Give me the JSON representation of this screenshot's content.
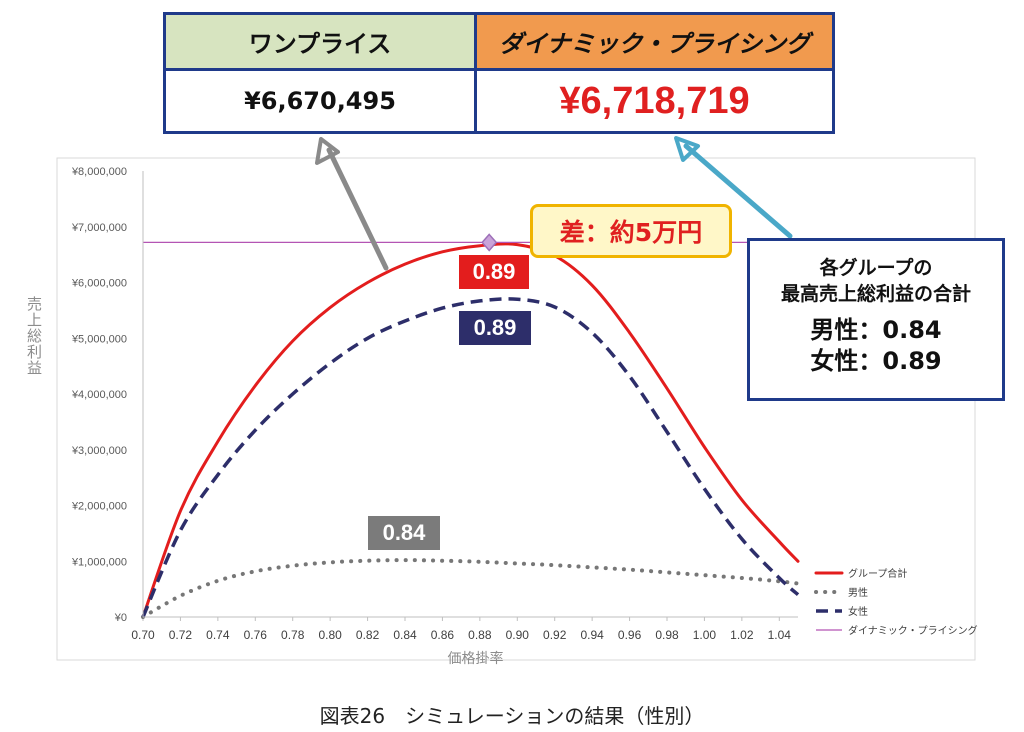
{
  "comparison": {
    "one_price_label": "ワンプライス",
    "dynamic_label": "ダイナミック・プライシング",
    "one_price_value": "¥6,670,495",
    "dynamic_value": "¥6,718,719"
  },
  "callouts": {
    "difference": "差：約5万円",
    "info_title_1": "各グループの",
    "info_title_2": "最高売上総利益の合計",
    "info_male": "男性：0.84",
    "info_female": "女性：0.89",
    "tag_total": "0.89",
    "tag_female": "0.89",
    "tag_male": "0.84"
  },
  "caption": "図表26　シミュレーションの結果（性別）",
  "colors": {
    "total": "#e31d1d",
    "male": "#777777",
    "female": "#2d2e6a",
    "dynamic": "#b455b4",
    "arrow_gray": "#8a8a8a",
    "arrow_blue": "#4aa8c8"
  },
  "chart_data": {
    "type": "line",
    "xlabel": "価格掛率",
    "ylabel": "売上総利益",
    "xlim": [
      0.7,
      1.05
    ],
    "ylim": [
      0,
      8000000
    ],
    "x_ticks": [
      "0.70",
      "0.72",
      "0.74",
      "0.76",
      "0.78",
      "0.80",
      "0.82",
      "0.84",
      "0.86",
      "0.88",
      "0.90",
      "0.92",
      "0.94",
      "0.96",
      "0.98",
      "1.00",
      "1.02",
      "1.04"
    ],
    "y_ticks": [
      "¥0",
      "¥1,000,000",
      "¥2,000,000",
      "¥3,000,000",
      "¥4,000,000",
      "¥5,000,000",
      "¥6,000,000",
      "¥7,000,000",
      "¥8,000,000"
    ],
    "grid": false,
    "legend_position": "bottom-right",
    "x": [
      0.7,
      0.72,
      0.74,
      0.76,
      0.78,
      0.8,
      0.82,
      0.84,
      0.86,
      0.88,
      0.9,
      0.92,
      0.94,
      0.96,
      0.98,
      1.0,
      1.02,
      1.04,
      1.05
    ],
    "series": [
      {
        "name": "グループ合計",
        "style": "solid",
        "values": [
          0,
          1900000,
          3150000,
          4150000,
          4950000,
          5550000,
          6000000,
          6330000,
          6550000,
          6660000,
          6680000,
          6480000,
          5950000,
          5100000,
          4100000,
          3050000,
          2100000,
          1350000,
          1000000
        ]
      },
      {
        "name": "男性",
        "style": "dotted",
        "values": [
          0,
          380000,
          650000,
          820000,
          920000,
          980000,
          1010000,
          1020000,
          1010000,
          990000,
          960000,
          930000,
          890000,
          850000,
          800000,
          750000,
          700000,
          640000,
          600000
        ]
      },
      {
        "name": "女性",
        "style": "dashed",
        "values": [
          0,
          1550000,
          2550000,
          3350000,
          4000000,
          4550000,
          5000000,
          5310000,
          5540000,
          5670000,
          5700000,
          5560000,
          5100000,
          4320000,
          3320000,
          2300000,
          1400000,
          700000,
          400000
        ]
      },
      {
        "name": "ダイナミック・プライシング",
        "style": "solid-thin",
        "values": [
          6718719,
          6718719,
          6718719,
          6718719,
          6718719,
          6718719,
          6718719,
          6718719,
          6718719,
          6718719,
          6718719,
          6718719,
          6718719,
          6718719,
          6718719,
          6718719,
          6718719,
          6718719,
          6718719
        ]
      }
    ],
    "marker": {
      "x": 0.885,
      "y": 6718719
    }
  }
}
